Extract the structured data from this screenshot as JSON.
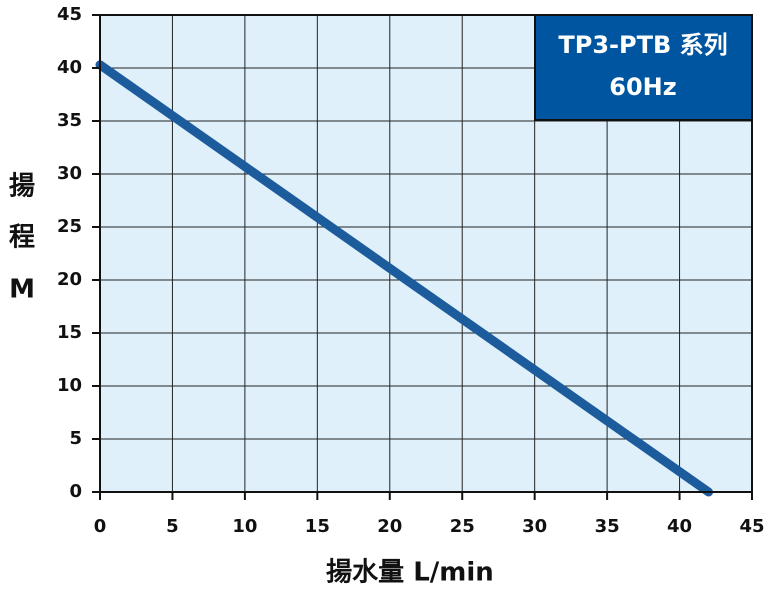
{
  "chart_data": {
    "type": "line",
    "title": [
      "TP3-PTB 系列",
      "60Hz"
    ],
    "x_label": "揚水量 L/min",
    "y_label": [
      "揚",
      "程",
      "M"
    ],
    "x": [
      0,
      42
    ],
    "series": [
      {
        "color": "#1d5c9c",
        "values": [
          40.3,
          0
        ]
      }
    ],
    "xlim": [
      0,
      45
    ],
    "xticks": [
      0,
      5,
      10,
      15,
      20,
      25,
      30,
      35,
      40,
      45
    ],
    "ylim": [
      0,
      45
    ],
    "yticks": [
      0,
      5,
      10,
      15,
      20,
      25,
      30,
      35,
      40,
      45
    ],
    "grid": true
  }
}
